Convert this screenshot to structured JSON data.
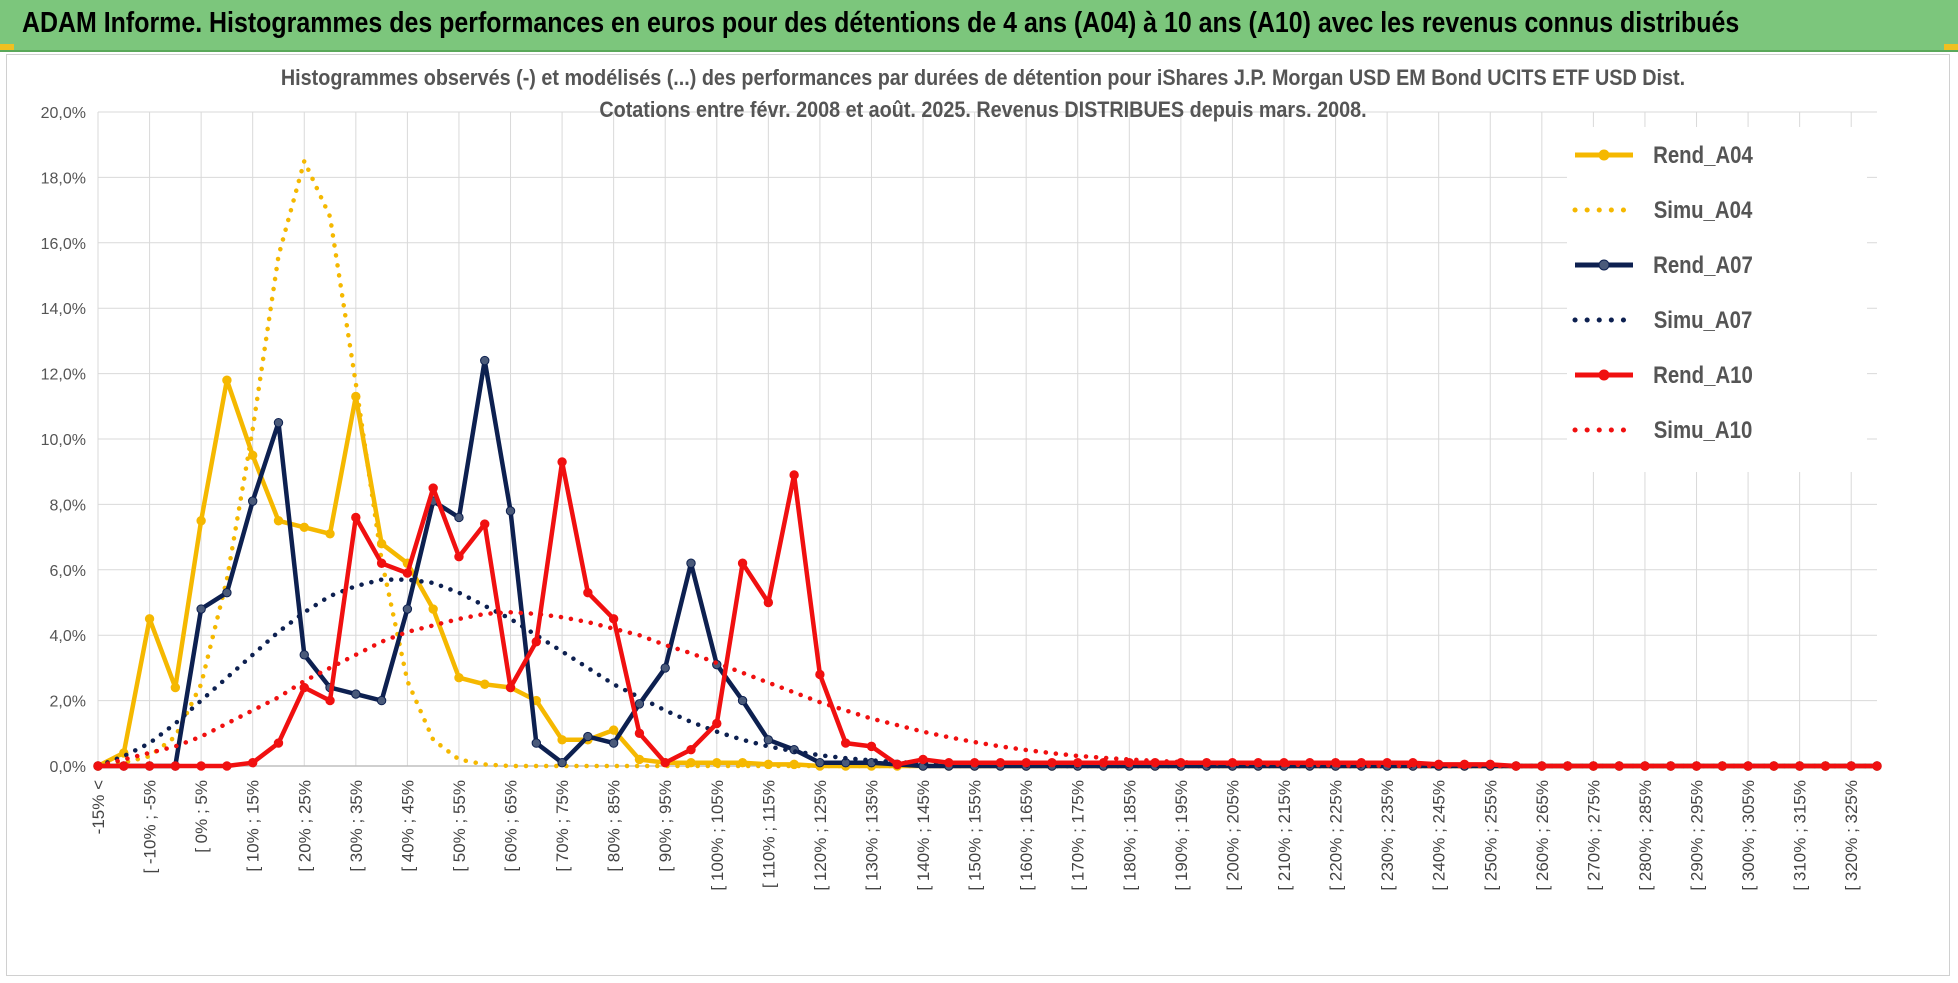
{
  "header": {
    "title": "ADAM Informe. Histogrammes des performances en euros pour des détentions de 4 ans (A04) à 10 ans (A10) avec les revenus connus distribués"
  },
  "chart_data": {
    "type": "line",
    "title_line1": "Histogrammes observés (-) et modélisés (...) des performances par durées de détention pour iShares J.P. Morgan USD EM Bond UCITS ETF USD Dist.",
    "title_line2": "Cotations entre févr. 2008 et août. 2025. Revenus DISTRIBUES depuis mars. 2008.",
    "ylim": [
      0,
      20
    ],
    "yticks": [
      "0,0%",
      "2,0%",
      "4,0%",
      "6,0%",
      "8,0%",
      "10,0%",
      "12,0%",
      "14,0%",
      "16,0%",
      "18,0%",
      "20,0%"
    ],
    "grid": true,
    "legend_position": "right",
    "x_labels": [
      "-15% <",
      "[ -10% ; -5%",
      "[ 0% ; 5%",
      "[ 10% ; 15%",
      "[ 20% ; 25%",
      "[ 30% ; 35%",
      "[ 40% ; 45%",
      "[ 50% ; 55%",
      "[ 60% ; 65%",
      "[ 70% ; 75%",
      "[ 80% ; 85%",
      "[ 90% ; 95%",
      "[ 100% ; 105%",
      "[ 110% ; 115%",
      "[ 120% ; 125%",
      "[ 130% ; 135%",
      "[ 140% ; 145%",
      "[ 150% ; 155%",
      "[ 160% ; 165%",
      "[ 170% ; 175%",
      "[ 180% ; 185%",
      "[ 190% ; 195%",
      "[ 200% ; 205%",
      "[ 210% ; 215%",
      "[ 220% ; 225%",
      "[ 230% ; 235%",
      "[ 240% ; 245%",
      "[ 250% ; 255%",
      "[ 260% ; 265%",
      "[ 270% ; 275%",
      "[ 280% ; 285%",
      "[ 290% ; 295%",
      "[ 300% ; 305%",
      "[ 310% ; 315%",
      "[ 320% ; 325%"
    ],
    "n_categories": 70,
    "series": [
      {
        "name": "Rend_A04",
        "style": "solid",
        "color": "#f5b800",
        "markers": true,
        "values": [
          0,
          0.4,
          4.5,
          2.4,
          7.5,
          11.8,
          9.5,
          7.5,
          7.3,
          7.1,
          11.3,
          6.8,
          6.2,
          4.8,
          2.7,
          2.5,
          2.4,
          2.0,
          0.8,
          0.8,
          1.1,
          0.2,
          0.1,
          0.1,
          0.1,
          0.1,
          0.05,
          0.05,
          0,
          0,
          0,
          0,
          0,
          0,
          0,
          0,
          0,
          0,
          0,
          0,
          0,
          0,
          0,
          0,
          0,
          0,
          0,
          0,
          0,
          0,
          0,
          0,
          0,
          0,
          0,
          0,
          0,
          0,
          0,
          0,
          0,
          0,
          0,
          0,
          0,
          0,
          0,
          0,
          0,
          0
        ]
      },
      {
        "name": "Simu_A04",
        "style": "dotted",
        "color": "#f5b800",
        "markers": false,
        "values": [
          0,
          0.1,
          0.3,
          0.9,
          2.5,
          5.7,
          10.3,
          15.6,
          18.5,
          16.8,
          11.7,
          6.3,
          2.6,
          0.8,
          0.2,
          0.05,
          0,
          0,
          0,
          0,
          0,
          0,
          0,
          0,
          0,
          0,
          0,
          0,
          0,
          0,
          0,
          0,
          0,
          0,
          0,
          0,
          0,
          0,
          0,
          0,
          0,
          0,
          0,
          0,
          0,
          0,
          0,
          0,
          0,
          0,
          0,
          0,
          0,
          0,
          0,
          0,
          0,
          0,
          0,
          0,
          0,
          0,
          0,
          0,
          0,
          0,
          0,
          0,
          0,
          0
        ]
      },
      {
        "name": "Rend_A07",
        "style": "solid",
        "color": "#0d2050",
        "markers": true,
        "values": [
          0,
          0,
          0,
          0,
          4.8,
          5.3,
          8.1,
          10.5,
          3.4,
          2.4,
          2.2,
          2.0,
          4.8,
          8.1,
          7.6,
          12.4,
          7.8,
          0.7,
          0.1,
          0.9,
          0.7,
          1.9,
          3.0,
          6.2,
          3.1,
          2.0,
          0.8,
          0.5,
          0.1,
          0.1,
          0.1,
          0.05,
          0,
          0,
          0,
          0,
          0,
          0,
          0,
          0,
          0,
          0,
          0,
          0,
          0,
          0,
          0,
          0,
          0,
          0,
          0,
          0,
          0,
          0,
          0,
          0,
          0,
          0,
          0,
          0,
          0,
          0,
          0,
          0,
          0,
          0,
          0,
          0,
          0,
          0
        ]
      },
      {
        "name": "Simu_A07",
        "style": "dotted",
        "color": "#0d2050",
        "markers": false,
        "values": [
          0,
          0.3,
          0.7,
          1.3,
          2.0,
          2.7,
          3.4,
          4.1,
          4.7,
          5.2,
          5.5,
          5.7,
          5.7,
          5.6,
          5.3,
          4.9,
          4.5,
          4.0,
          3.5,
          3.0,
          2.5,
          2.1,
          1.7,
          1.35,
          1.05,
          0.8,
          0.6,
          0.45,
          0.33,
          0.24,
          0.17,
          0.12,
          0.08,
          0.05,
          0.03,
          0.02,
          0.01,
          0,
          0,
          0,
          0,
          0,
          0,
          0,
          0,
          0,
          0,
          0,
          0,
          0,
          0,
          0,
          0,
          0,
          0,
          0,
          0,
          0,
          0,
          0,
          0,
          0,
          0,
          0,
          0,
          0,
          0,
          0,
          0,
          0
        ]
      },
      {
        "name": "Rend_A10",
        "style": "solid",
        "color": "#f01010",
        "markers": true,
        "values": [
          0,
          0,
          0,
          0,
          0,
          0,
          0.1,
          0.7,
          2.4,
          2.0,
          7.6,
          6.2,
          5.9,
          8.5,
          6.4,
          7.4,
          2.4,
          3.8,
          9.3,
          5.3,
          4.5,
          1.0,
          0.1,
          0.5,
          1.3,
          6.2,
          5.0,
          8.9,
          2.8,
          0.7,
          0.6,
          0.05,
          0.2,
          0.1,
          0.1,
          0.1,
          0.1,
          0.1,
          0.1,
          0.1,
          0.1,
          0.1,
          0.1,
          0.1,
          0.1,
          0.1,
          0.1,
          0.1,
          0.1,
          0.1,
          0.1,
          0.1,
          0.05,
          0.05,
          0.05,
          0,
          0,
          0,
          0,
          0,
          0,
          0,
          0,
          0,
          0,
          0,
          0,
          0,
          0,
          0
        ]
      },
      {
        "name": "Simu_A10",
        "style": "dotted",
        "color": "#f01010",
        "markers": false,
        "values": [
          0,
          0.2,
          0.4,
          0.6,
          0.9,
          1.3,
          1.7,
          2.1,
          2.6,
          3.0,
          3.4,
          3.8,
          4.1,
          4.3,
          4.5,
          4.65,
          4.7,
          4.65,
          4.55,
          4.4,
          4.2,
          4.0,
          3.7,
          3.45,
          3.15,
          2.85,
          2.55,
          2.25,
          1.95,
          1.7,
          1.45,
          1.25,
          1.05,
          0.88,
          0.73,
          0.6,
          0.49,
          0.39,
          0.31,
          0.25,
          0.2,
          0.16,
          0.12,
          0.09,
          0.07,
          0.05,
          0.04,
          0.03,
          0.02,
          0.01,
          0.01,
          0,
          0,
          0,
          0,
          0,
          0,
          0,
          0,
          0,
          0,
          0,
          0,
          0,
          0,
          0,
          0,
          0,
          0,
          0
        ]
      }
    ]
  }
}
